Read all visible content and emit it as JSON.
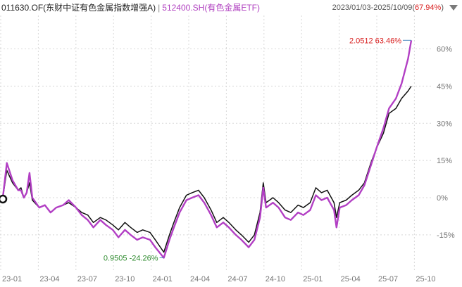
{
  "header": {
    "series1_label": "011630.OF(东财中证有色金属指数增强A)",
    "separator": "|",
    "series2_label": "512400.SH(有色金属ETF)",
    "range_text": "2023/01/03-2025/10/09(",
    "range_pct": "67.94%",
    "range_close": ")",
    "menu_icon": "triangle-down-icon"
  },
  "colors": {
    "series1": "#111111",
    "series2": "#b23fc4",
    "high_label": "#d81e1e",
    "low_label": "#2e8b2e",
    "marker_line": "#4a8ac0",
    "grid": "#d8d8d8",
    "axis_text": "#777777"
  },
  "chart_data": {
    "type": "line",
    "x_tick_labels": [
      "23-01",
      "23-04",
      "23-07",
      "23-10",
      "24-01",
      "24-04",
      "24-07",
      "24-10",
      "25-01",
      "25-04",
      "25-07",
      "25-10"
    ],
    "y_tick_labels": [
      "60%",
      "45%",
      "30%",
      "15%",
      "0%",
      "-15%"
    ],
    "ylim": [
      -25,
      68
    ],
    "xlim": [
      "2023-01-03",
      "2025-10-09"
    ],
    "grid": "dashed horizontal and vertical",
    "annotations": {
      "high": {
        "date": "2025-10-09",
        "value": 63.46,
        "text": "2.0512 63.46%"
      },
      "low": {
        "date": "2024-02-05",
        "value": -24.26,
        "text": "0.9505 -24.26%"
      }
    },
    "series": [
      {
        "name": "011630.OF(东财中证有色金属指数增强A)",
        "points": [
          [
            "2023-01-03",
            0
          ],
          [
            "2023-01-13",
            11
          ],
          [
            "2023-01-27",
            6
          ],
          [
            "2023-02-10",
            3
          ],
          [
            "2023-02-17",
            4
          ],
          [
            "2023-02-24",
            0
          ],
          [
            "2023-03-03",
            2
          ],
          [
            "2023-03-10",
            6
          ],
          [
            "2023-03-17",
            -1
          ],
          [
            "2023-04-03",
            -4
          ],
          [
            "2023-04-17",
            -3
          ],
          [
            "2023-05-01",
            -6
          ],
          [
            "2023-05-15",
            -4
          ],
          [
            "2023-06-01",
            -3
          ],
          [
            "2023-06-15",
            -2
          ],
          [
            "2023-07-03",
            -4
          ],
          [
            "2023-07-17",
            -6
          ],
          [
            "2023-08-01",
            -7
          ],
          [
            "2023-08-15",
            -10
          ],
          [
            "2023-09-01",
            -8
          ],
          [
            "2023-09-15",
            -9
          ],
          [
            "2023-10-02",
            -11
          ],
          [
            "2023-10-16",
            -13
          ],
          [
            "2023-11-01",
            -10
          ],
          [
            "2023-11-15",
            -12
          ],
          [
            "2023-12-01",
            -14
          ],
          [
            "2023-12-15",
            -13
          ],
          [
            "2024-01-02",
            -14
          ],
          [
            "2024-01-15",
            -17
          ],
          [
            "2024-02-05",
            -22
          ],
          [
            "2024-02-19",
            -15
          ],
          [
            "2024-03-01",
            -10
          ],
          [
            "2024-03-15",
            -4
          ],
          [
            "2024-04-01",
            1
          ],
          [
            "2024-04-15",
            2
          ],
          [
            "2024-05-01",
            3
          ],
          [
            "2024-05-15",
            0
          ],
          [
            "2024-06-01",
            -5
          ],
          [
            "2024-06-15",
            -10
          ],
          [
            "2024-07-01",
            -8
          ],
          [
            "2024-07-15",
            -10
          ],
          [
            "2024-08-01",
            -13
          ],
          [
            "2024-08-15",
            -15
          ],
          [
            "2024-09-02",
            -18
          ],
          [
            "2024-09-16",
            -15
          ],
          [
            "2024-09-30",
            -6
          ],
          [
            "2024-10-08",
            6
          ],
          [
            "2024-10-15",
            -2
          ],
          [
            "2024-11-01",
            0
          ],
          [
            "2024-11-15",
            -2
          ],
          [
            "2024-12-01",
            -5
          ],
          [
            "2024-12-15",
            -6
          ],
          [
            "2025-01-02",
            -3
          ],
          [
            "2025-01-15",
            -4
          ],
          [
            "2025-02-01",
            -2
          ],
          [
            "2025-02-15",
            4
          ],
          [
            "2025-03-01",
            2
          ],
          [
            "2025-03-15",
            3
          ],
          [
            "2025-04-01",
            -2
          ],
          [
            "2025-04-07",
            -8
          ],
          [
            "2025-04-15",
            -2
          ],
          [
            "2025-05-01",
            -1
          ],
          [
            "2025-05-15",
            1
          ],
          [
            "2025-06-01",
            3
          ],
          [
            "2025-06-15",
            6
          ],
          [
            "2025-07-01",
            14
          ],
          [
            "2025-07-15",
            20
          ],
          [
            "2025-08-01",
            26
          ],
          [
            "2025-08-15",
            34
          ],
          [
            "2025-09-01",
            36
          ],
          [
            "2025-09-15",
            40
          ],
          [
            "2025-10-01",
            43
          ],
          [
            "2025-10-09",
            45
          ]
        ]
      },
      {
        "name": "512400.SH(有色金属ETF)",
        "points": [
          [
            "2023-01-03",
            0
          ],
          [
            "2023-01-13",
            14
          ],
          [
            "2023-01-27",
            7
          ],
          [
            "2023-02-10",
            3
          ],
          [
            "2023-02-17",
            3
          ],
          [
            "2023-02-24",
            0
          ],
          [
            "2023-03-03",
            2
          ],
          [
            "2023-03-10",
            10
          ],
          [
            "2023-03-17",
            0
          ],
          [
            "2023-04-03",
            -4
          ],
          [
            "2023-04-17",
            -3
          ],
          [
            "2023-05-01",
            -6
          ],
          [
            "2023-05-15",
            -4
          ],
          [
            "2023-06-01",
            -3
          ],
          [
            "2023-06-15",
            -1
          ],
          [
            "2023-07-03",
            -4
          ],
          [
            "2023-07-17",
            -7
          ],
          [
            "2023-08-01",
            -9
          ],
          [
            "2023-08-15",
            -12
          ],
          [
            "2023-09-01",
            -9
          ],
          [
            "2023-09-15",
            -11
          ],
          [
            "2023-10-02",
            -13
          ],
          [
            "2023-10-16",
            -16
          ],
          [
            "2023-11-01",
            -13
          ],
          [
            "2023-11-15",
            -15
          ],
          [
            "2023-12-01",
            -17
          ],
          [
            "2023-12-15",
            -16
          ],
          [
            "2024-01-02",
            -17
          ],
          [
            "2024-01-15",
            -20
          ],
          [
            "2024-02-05",
            -24.26
          ],
          [
            "2024-02-19",
            -17
          ],
          [
            "2024-03-01",
            -12
          ],
          [
            "2024-03-15",
            -6
          ],
          [
            "2024-04-01",
            -1
          ],
          [
            "2024-04-15",
            0
          ],
          [
            "2024-05-01",
            1
          ],
          [
            "2024-05-15",
            -2
          ],
          [
            "2024-06-01",
            -7
          ],
          [
            "2024-06-15",
            -12
          ],
          [
            "2024-07-01",
            -10
          ],
          [
            "2024-07-15",
            -12
          ],
          [
            "2024-08-01",
            -15
          ],
          [
            "2024-08-15",
            -17
          ],
          [
            "2024-09-02",
            -20
          ],
          [
            "2024-09-16",
            -17
          ],
          [
            "2024-09-30",
            -8
          ],
          [
            "2024-10-08",
            4
          ],
          [
            "2024-10-15",
            -4
          ],
          [
            "2024-11-01",
            -2
          ],
          [
            "2024-11-15",
            -4
          ],
          [
            "2024-12-01",
            -8
          ],
          [
            "2024-12-15",
            -9
          ],
          [
            "2025-01-02",
            -6
          ],
          [
            "2025-01-15",
            -7
          ],
          [
            "2025-02-01",
            -5
          ],
          [
            "2025-02-15",
            1
          ],
          [
            "2025-03-01",
            -1
          ],
          [
            "2025-03-15",
            0
          ],
          [
            "2025-04-01",
            -5
          ],
          [
            "2025-04-07",
            -12
          ],
          [
            "2025-04-15",
            -4
          ],
          [
            "2025-05-01",
            -3
          ],
          [
            "2025-05-15",
            -1
          ],
          [
            "2025-06-01",
            1
          ],
          [
            "2025-06-15",
            5
          ],
          [
            "2025-07-01",
            13
          ],
          [
            "2025-07-15",
            20
          ],
          [
            "2025-08-01",
            28
          ],
          [
            "2025-08-15",
            36
          ],
          [
            "2025-09-01",
            40
          ],
          [
            "2025-09-15",
            46
          ],
          [
            "2025-10-01",
            56
          ],
          [
            "2025-10-09",
            63.46
          ]
        ]
      }
    ]
  }
}
